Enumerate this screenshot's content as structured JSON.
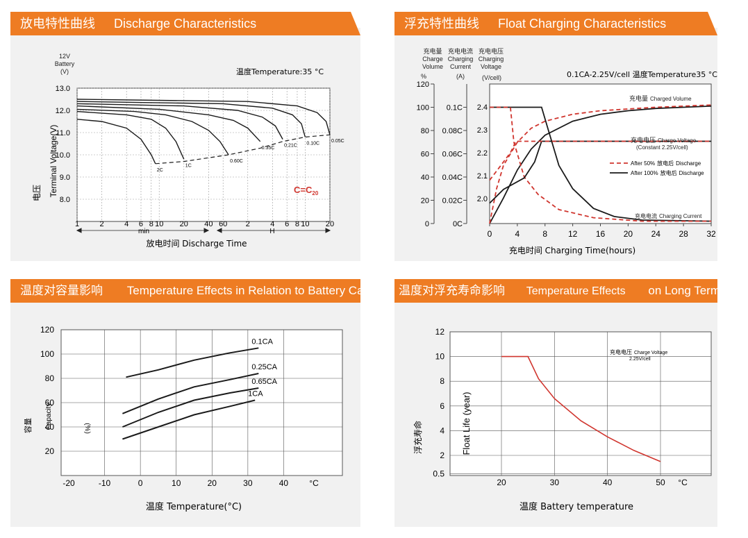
{
  "colors": {
    "accent": "#ee7c23",
    "panel": "#f1f1f1",
    "red": "#d0352e",
    "curve": "#1a1a1a"
  },
  "panels": {
    "discharge": {
      "title_cn": "放电特性曲线",
      "title_en": "Discharge Characteristics"
    },
    "float": {
      "title_cn": "浮充特性曲线",
      "title_en": "Float Charging Characteristics"
    },
    "temp_capacity": {
      "title_cn": "温度对容量影响",
      "title_en": "Temperature Effects in Relation to Battery Capacity"
    },
    "temp_life": {
      "title_cn": "温度对浮充寿命影响",
      "title_en": "Temperature Effects",
      "title_en2": "on Long Term Float L"
    }
  },
  "chart_data": [
    {
      "id": "discharge",
      "type": "line",
      "battery_label": [
        "12V",
        "Battery",
        "(V)"
      ],
      "condition": "温度Temperature:35 °C",
      "ylabel_cn": "电压",
      "ylabel_en": "Terminal Voltage(V)",
      "ylim": [
        7.0,
        13.0
      ],
      "yticks": [
        "13.0",
        "12.0",
        "11.0",
        "10.0",
        "9.0",
        "8.0"
      ],
      "xticks_min": [
        "1",
        "2",
        "4",
        "6",
        "8",
        "10",
        "20",
        "40",
        "60"
      ],
      "xticks_h": [
        "2",
        "4",
        "6",
        "8",
        "10",
        "20"
      ],
      "xunit_min": "min",
      "xunit_h": "H",
      "xlabel": "放电时间 Discharge Time",
      "annotation": "C=C",
      "annotation_sub": "20",
      "grid": true,
      "series": [
        {
          "name": "2C",
          "values": [
            [
              1,
              11.6
            ],
            [
              2,
              11.5
            ],
            [
              4,
              11.2
            ],
            [
              6,
              10.7
            ],
            [
              8,
              10.0
            ],
            [
              9,
              9.6
            ]
          ]
        },
        {
          "name": "1C",
          "values": [
            [
              1,
              11.95
            ],
            [
              4,
              11.8
            ],
            [
              8,
              11.6
            ],
            [
              12,
              11.2
            ],
            [
              16,
              10.6
            ],
            [
              20,
              9.8
            ]
          ]
        },
        {
          "name": "0.60C",
          "values": [
            [
              1,
              12.05
            ],
            [
              5,
              11.95
            ],
            [
              12,
              11.8
            ],
            [
              25,
              11.5
            ],
            [
              40,
              11.1
            ],
            [
              55,
              10.6
            ],
            [
              70,
              10.0
            ]
          ]
        },
        {
          "name": "0.35C",
          "values": [
            [
              1,
              12.2
            ],
            [
              10,
              12.05
            ],
            [
              40,
              11.8
            ],
            [
              80,
              11.55
            ],
            [
              120,
              11.2
            ],
            [
              170,
              10.6
            ]
          ]
        },
        {
          "name": "0.21C",
          "values": [
            [
              1,
              12.3
            ],
            [
              20,
              12.2
            ],
            [
              90,
              12.0
            ],
            [
              180,
              11.7
            ],
            [
              260,
              11.3
            ],
            [
              320,
              10.7
            ]
          ]
        },
        {
          "name": "0.10C",
          "values": [
            [
              1,
              12.4
            ],
            [
              60,
              12.3
            ],
            [
              240,
              12.1
            ],
            [
              420,
              11.8
            ],
            [
              540,
              11.4
            ],
            [
              600,
              10.8
            ]
          ]
        },
        {
          "name": "0.05C",
          "values": [
            [
              1,
              12.5
            ],
            [
              120,
              12.4
            ],
            [
              480,
              12.2
            ],
            [
              840,
              11.9
            ],
            [
              1080,
              11.5
            ],
            [
              1200,
              10.9
            ]
          ]
        }
      ],
      "cutoff_line": {
        "style": "dashed",
        "values": [
          [
            9,
            9.6
          ],
          [
            20,
            9.7
          ],
          [
            70,
            10.0
          ],
          [
            170,
            10.3
          ],
          [
            320,
            10.6
          ],
          [
            600,
            10.8
          ],
          [
            1200,
            10.9
          ]
        ]
      }
    },
    {
      "id": "float",
      "type": "line",
      "header_labels": [
        {
          "cn": "充电量",
          "en": [
            "Charge",
            "Volume"
          ],
          "unit": "%"
        },
        {
          "cn": "充电电流",
          "en": [
            "Charging",
            "Current"
          ],
          "unit": "(A)"
        },
        {
          "cn": "充电电压",
          "en": [
            "Charging",
            "Voltage"
          ],
          "unit": "(V/cell)"
        }
      ],
      "condition": "0.1CA-2.25V/cell  温度Temperature35 °C",
      "y_volume_ticks": [
        "120",
        "100",
        "80",
        "60",
        "40",
        "20",
        "0"
      ],
      "y_current_ticks": [
        "0.1C",
        "0.08C",
        "0.06C",
        "0.04C",
        "0.02C",
        "0C"
      ],
      "y_voltage_ticks": [
        "2.4",
        "2.3",
        "2.2",
        "2.1",
        "2.0"
      ],
      "xticks": [
        "0",
        "4",
        "8",
        "12",
        "16",
        "20",
        "24",
        "28",
        "32"
      ],
      "xlabel": "充电时间 Charging Time(hours)",
      "labels": {
        "charged_volume_cn": "充电量",
        "charged_volume_en": "Charged Volume",
        "charge_voltage_cn": "充电电压",
        "charge_voltage_en": "Charge Voltage",
        "charge_voltage_note": "(Constant 2.25V/cell)",
        "charging_current_cn": "充电电流",
        "charging_current_en": "Charging Current"
      },
      "legend": [
        {
          "style": "dashed",
          "en": "After 50%",
          "cn": "放电后",
          "en2": "Discharge"
        },
        {
          "style": "solid",
          "en": "After 100%",
          "cn": "放电后",
          "en2": "Discharge"
        }
      ],
      "series": [
        {
          "name": "After 100% Volume",
          "axis": "volume",
          "values": [
            [
              0,
              0
            ],
            [
              2,
              22
            ],
            [
              4,
              46
            ],
            [
              6,
              64
            ],
            [
              8,
              76
            ],
            [
              12,
              88
            ],
            [
              16,
              94
            ],
            [
              20,
              97
            ],
            [
              24,
              99
            ],
            [
              28,
              100
            ],
            [
              32,
              101
            ]
          ]
        },
        {
          "name": "After 50% Volume",
          "axis": "volume",
          "values": [
            [
              0,
              0
            ],
            [
              1,
              30
            ],
            [
              2,
              50
            ],
            [
              4,
              70
            ],
            [
              6,
              82
            ],
            [
              8,
              88
            ],
            [
              12,
              94
            ],
            [
              16,
              97
            ],
            [
              24,
              100
            ],
            [
              32,
              102
            ]
          ]
        },
        {
          "name": "After 100% Current",
          "axis": "current",
          "values": [
            [
              0,
              0.1
            ],
            [
              7.5,
              0.1
            ],
            [
              8.5,
              0.08
            ],
            [
              10,
              0.05
            ],
            [
              12,
              0.03
            ],
            [
              15,
              0.013
            ],
            [
              18,
              0.006
            ],
            [
              22,
              0.003
            ],
            [
              32,
              0.002
            ]
          ]
        },
        {
          "name": "After 50% Current",
          "axis": "current",
          "values": [
            [
              0,
              0.1
            ],
            [
              3,
              0.1
            ],
            [
              3.5,
              0.07
            ],
            [
              4,
              0.06
            ],
            [
              5,
              0.04
            ],
            [
              7,
              0.025
            ],
            [
              10,
              0.012
            ],
            [
              15,
              0.005
            ],
            [
              22,
              0.002
            ],
            [
              32,
              0.002
            ]
          ]
        },
        {
          "name": "After 100% Voltage",
          "axis": "voltage",
          "values": [
            [
              0,
              1.98
            ],
            [
              2,
              2.04
            ],
            [
              5,
              2.09
            ],
            [
              6.5,
              2.16
            ],
            [
              7.5,
              2.25
            ],
            [
              32,
              2.25
            ]
          ]
        },
        {
          "name": "After 50% Voltage",
          "axis": "voltage",
          "values": [
            [
              0,
              2.08
            ],
            [
              1.5,
              2.14
            ],
            [
              3,
              2.2
            ],
            [
              3.8,
              2.25
            ],
            [
              32,
              2.25
            ]
          ]
        }
      ]
    },
    {
      "id": "temp_capacity",
      "type": "line",
      "ylabel_cn": "容量",
      "ylabel_en": "Capacity",
      "ylabel_unit": "(%)",
      "yticks": [
        "120",
        "100",
        "80",
        "60",
        "40",
        "20"
      ],
      "xticks": [
        "-20",
        "-10",
        "0",
        "10",
        "20",
        "30",
        "40"
      ],
      "xunit": "°C",
      "xlabel": "温度 Temperature(°C)",
      "grid": true,
      "series": [
        {
          "name": "0.1CA",
          "values": [
            [
              -4,
              81
            ],
            [
              5,
              87
            ],
            [
              15,
              95
            ],
            [
              25,
              101
            ],
            [
              33,
              105
            ]
          ]
        },
        {
          "name": "0.25CA",
          "values": [
            [
              -5,
              51
            ],
            [
              5,
              63
            ],
            [
              15,
              73
            ],
            [
              25,
              79
            ],
            [
              33,
              84
            ]
          ]
        },
        {
          "name": "0.65CA",
          "values": [
            [
              -5,
              40
            ],
            [
              5,
              52
            ],
            [
              15,
              62
            ],
            [
              25,
              68
            ],
            [
              33,
              72
            ]
          ]
        },
        {
          "name": "1CA",
          "values": [
            [
              -5,
              30
            ],
            [
              5,
              40
            ],
            [
              15,
              50
            ],
            [
              25,
              57
            ],
            [
              32,
              62
            ]
          ]
        }
      ]
    },
    {
      "id": "temp_life",
      "type": "line",
      "ylabel_cn": "浮充寿命",
      "ylabel_en": "Float Life (year)",
      "yticks": [
        "12",
        "10",
        "8",
        "6",
        "4",
        "2",
        "0.5"
      ],
      "xticks": [
        "20",
        "30",
        "40",
        "50"
      ],
      "xunit": "°C",
      "xlabel": "温度 Battery temperature",
      "annotation_cn": "充电电压",
      "annotation_en": "Charge Voltage",
      "annotation_value": "2.25V/cell",
      "grid": true,
      "series": [
        {
          "name": "Float Life",
          "values": [
            [
              20,
              10
            ],
            [
              25,
              10
            ],
            [
              27,
              8.2
            ],
            [
              30,
              6.6
            ],
            [
              35,
              4.8
            ],
            [
              40,
              3.5
            ],
            [
              45,
              2.4
            ],
            [
              50,
              1.5
            ]
          ]
        }
      ]
    }
  ]
}
